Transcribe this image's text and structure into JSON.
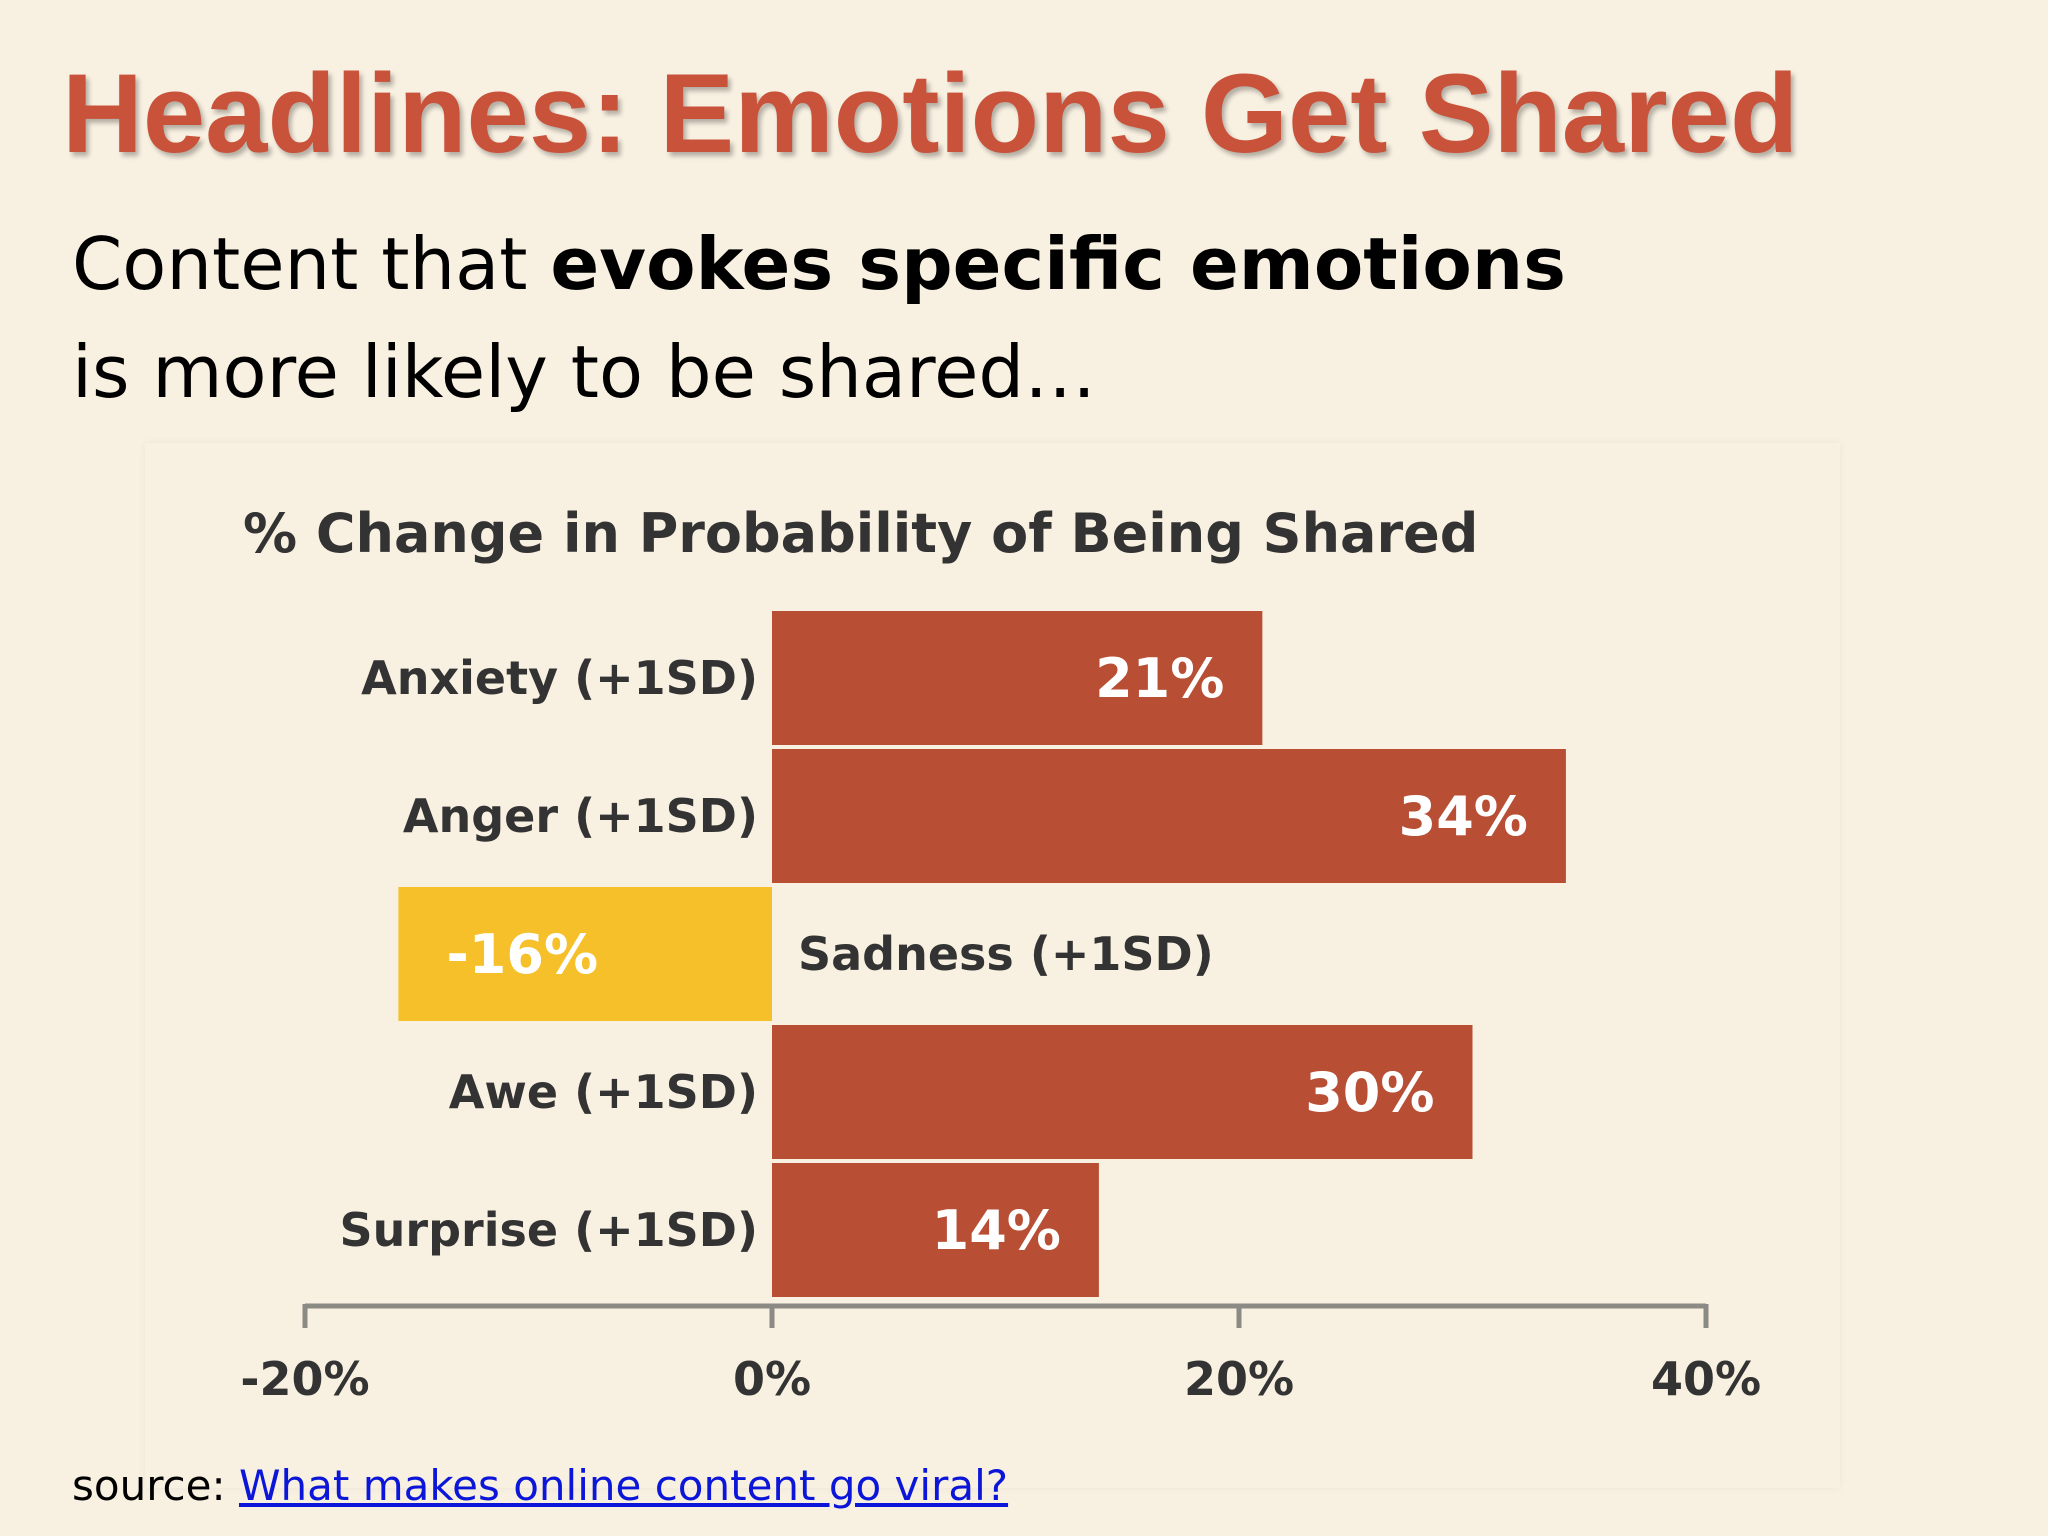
{
  "slide": {
    "title": "Headlines: Emotions Get Shared",
    "subtitle_prefix": "Content that ",
    "subtitle_bold": "evokes specific emotions",
    "subtitle_line2": "is more likely to be shared…",
    "source_label": "source: ",
    "source_link": "What makes online content go viral?"
  },
  "colors": {
    "title": "#c9523a",
    "positive_bar": "#b84e34",
    "negative_bar": "#f5c02a",
    "axis": "#8c8a84",
    "chart_text": "#333333",
    "bar_text": "#ffffff",
    "link": "#0b16d8"
  },
  "chart_data": {
    "type": "bar",
    "orientation": "horizontal",
    "title": "% Change in Probability of Being Shared",
    "categories": [
      "Anxiety (+1SD)",
      "Anger (+1SD)",
      "Sadness (+1SD)",
      "Awe (+1SD)",
      "Surprise (+1SD)"
    ],
    "values": [
      21,
      34,
      -16,
      30,
      14
    ],
    "data_labels": [
      "21%",
      "34%",
      "-16%",
      "30%",
      "14%"
    ],
    "x_ticks": [
      -20,
      0,
      20,
      40
    ],
    "x_tick_labels": [
      "-20%",
      "0%",
      "20%",
      "40%"
    ],
    "xlim": [
      -20,
      40
    ],
    "grid": false,
    "legend": "none"
  }
}
